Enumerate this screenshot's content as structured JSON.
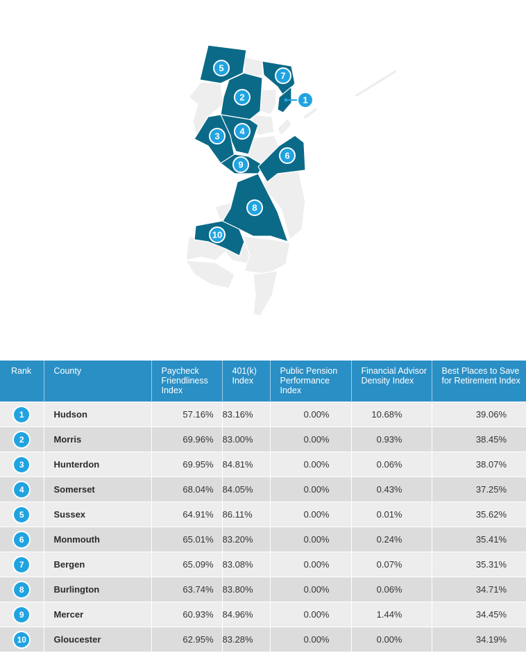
{
  "map": {
    "highlight_color": "#0b6a88",
    "base_color": "#eeeeee",
    "marker_color": "#21a3e0",
    "markers": [
      "1",
      "2",
      "3",
      "4",
      "5",
      "6",
      "7",
      "8",
      "9",
      "10"
    ]
  },
  "table": {
    "header_color": "#2a8fc5",
    "headers": [
      "Rank",
      "County",
      "Paycheck Friendliness Index",
      "401(k) Index",
      "Public Pension Performance Index",
      "Financial Advisor Density Index",
      "Best Places to Save for Retirement Index"
    ],
    "rows": [
      {
        "rank": "1",
        "county": "Hudson",
        "paycheck": "57.16%",
        "k401": "83.16%",
        "pension": "0.00%",
        "advisor": "10.68%",
        "best": "39.06%"
      },
      {
        "rank": "2",
        "county": "Morris",
        "paycheck": "69.96%",
        "k401": "83.00%",
        "pension": "0.00%",
        "advisor": "0.93%",
        "best": "38.45%"
      },
      {
        "rank": "3",
        "county": "Hunterdon",
        "paycheck": "69.95%",
        "k401": "84.81%",
        "pension": "0.00%",
        "advisor": "0.06%",
        "best": "38.07%"
      },
      {
        "rank": "4",
        "county": "Somerset",
        "paycheck": "68.04%",
        "k401": "84.05%",
        "pension": "0.00%",
        "advisor": "0.43%",
        "best": "37.25%"
      },
      {
        "rank": "5",
        "county": "Sussex",
        "paycheck": "64.91%",
        "k401": "86.11%",
        "pension": "0.00%",
        "advisor": "0.01%",
        "best": "35.62%"
      },
      {
        "rank": "6",
        "county": "Monmouth",
        "paycheck": "65.01%",
        "k401": "83.20%",
        "pension": "0.00%",
        "advisor": "0.24%",
        "best": "35.41%"
      },
      {
        "rank": "7",
        "county": "Bergen",
        "paycheck": "65.09%",
        "k401": "83.08%",
        "pension": "0.00%",
        "advisor": "0.07%",
        "best": "35.31%"
      },
      {
        "rank": "8",
        "county": "Burlington",
        "paycheck": "63.74%",
        "k401": "83.80%",
        "pension": "0.00%",
        "advisor": "0.06%",
        "best": "34.71%"
      },
      {
        "rank": "9",
        "county": "Mercer",
        "paycheck": "60.93%",
        "k401": "84.96%",
        "pension": "0.00%",
        "advisor": "1.44%",
        "best": "34.45%"
      },
      {
        "rank": "10",
        "county": "Gloucester",
        "paycheck": "62.95%",
        "k401": "83.28%",
        "pension": "0.00%",
        "advisor": "0.00%",
        "best": "34.19%"
      }
    ]
  }
}
